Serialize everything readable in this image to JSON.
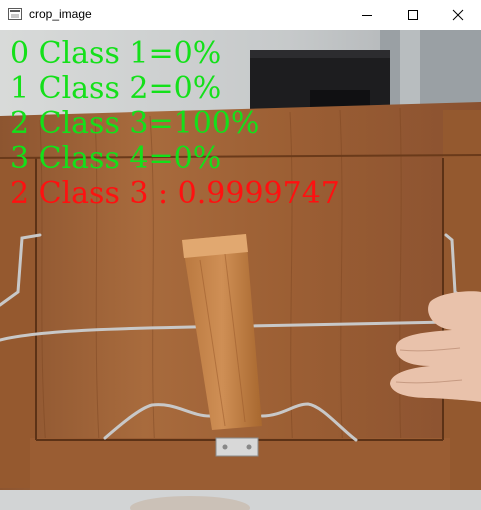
{
  "window": {
    "title": "crop_image",
    "app_icon": "opencv-window-icon",
    "controls": [
      "minimize-icon",
      "maximize-icon",
      "close-icon"
    ]
  },
  "overlay": {
    "lines": [
      "0 Class 1=0%",
      "1 Class 2=0%",
      "2 Class 3=100%",
      "3 Class 4=0%"
    ],
    "result": "2 Class 3 : 0.9999747"
  },
  "colors": {
    "class_lines": "#14e01a",
    "result_line": "#ff1010",
    "wood": "#a4683a",
    "wood_dark": "#6e3e1c",
    "wall": "#c9cbcc"
  }
}
